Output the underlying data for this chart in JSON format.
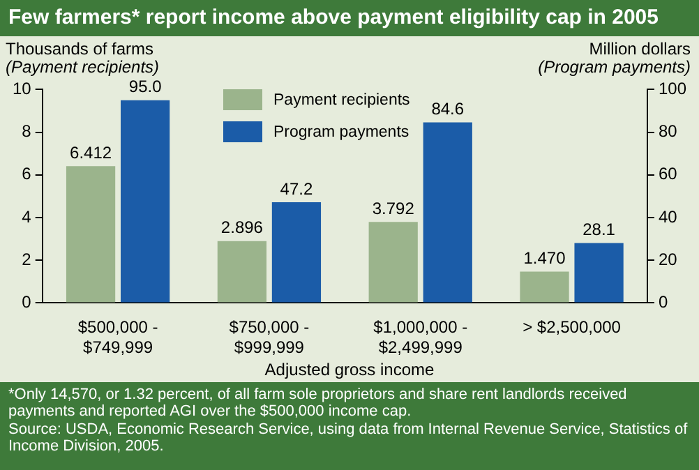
{
  "chart_data": {
    "type": "bar",
    "title": "Few farmers* report income above payment eligibility cap in 2005",
    "ylabel": "Thousands of farms\n(Payment recipients)",
    "y2label": "Million dollars\n(Program payments)",
    "xlabel": "Adjusted gross income",
    "categories": [
      "$500,000 -\n$749,999",
      "$750,000 -\n$999,999",
      "$1,000,000 -\n$2,499,999",
      "> $2,500,000"
    ],
    "series": [
      {
        "name": "Payment recipients",
        "color": "#9bb48c",
        "values": [
          6.412,
          2.896,
          3.792,
          1.47
        ],
        "value_labels": [
          "6.412",
          "2.896",
          "3.792",
          "1.470"
        ]
      },
      {
        "name": "Program payments",
        "color": "#1b5ca8",
        "axis": "y2",
        "values": [
          95.0,
          47.2,
          84.6,
          28.1
        ],
        "value_labels": [
          "95.0",
          "47.2",
          "84.6",
          "28.1"
        ]
      }
    ],
    "ylim": [
      0,
      10
    ],
    "yticks": [
      0,
      2,
      4,
      6,
      8,
      10
    ],
    "y2lim": [
      0,
      100
    ],
    "y2ticks": [
      0,
      20,
      40,
      60,
      80,
      100
    ],
    "grid": false,
    "legend": "top",
    "annotations": [
      "*Only 14,570, or 1.32 percent, of all farm sole proprietors and share rent landlords received payments and reported AGI over the $500,000 income cap.",
      "Source:  USDA, Economic Research Service, using data from Internal Revenue Service, Statistics of Income Division, 2005."
    ]
  }
}
